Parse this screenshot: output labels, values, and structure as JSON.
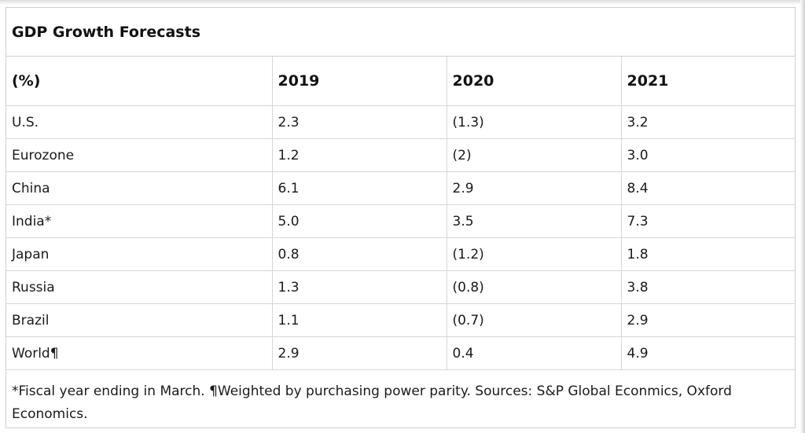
{
  "chart_data": {
    "type": "table",
    "title": "GDP Growth Forecasts",
    "columns": [
      "(%)",
      "2019",
      "2020",
      "2021"
    ],
    "rows": [
      {
        "label": "U.S.",
        "cells": [
          "2.3",
          "(1.3)",
          "3.2"
        ],
        "values": [
          2.3,
          -1.3,
          3.2
        ]
      },
      {
        "label": "Eurozone",
        "cells": [
          "1.2",
          "(2)",
          "3.0"
        ],
        "values": [
          1.2,
          -2,
          3.0
        ]
      },
      {
        "label": "China",
        "cells": [
          "6.1",
          "2.9",
          "8.4"
        ],
        "values": [
          6.1,
          2.9,
          8.4
        ]
      },
      {
        "label": "India*",
        "cells": [
          "5.0",
          "3.5",
          "7.3"
        ],
        "values": [
          5.0,
          3.5,
          7.3
        ]
      },
      {
        "label": "Japan",
        "cells": [
          "0.8",
          "(1.2)",
          "1.8"
        ],
        "values": [
          0.8,
          -1.2,
          1.8
        ]
      },
      {
        "label": "Russia",
        "cells": [
          "1.3",
          "(0.8)",
          "3.8"
        ],
        "values": [
          1.3,
          -0.8,
          3.8
        ]
      },
      {
        "label": "Brazil",
        "cells": [
          "1.1",
          "(0.7)",
          "2.9"
        ],
        "values": [
          1.1,
          -0.7,
          2.9
        ]
      },
      {
        "label": "World¶",
        "cells": [
          "2.9",
          "0.4",
          "4.9"
        ],
        "values": [
          2.9,
          0.4,
          4.9
        ]
      }
    ],
    "footnote": "*Fiscal year ending in March. ¶Weighted by purchasing power parity. Sources: S&P Global Econmics, Oxford Economics."
  }
}
